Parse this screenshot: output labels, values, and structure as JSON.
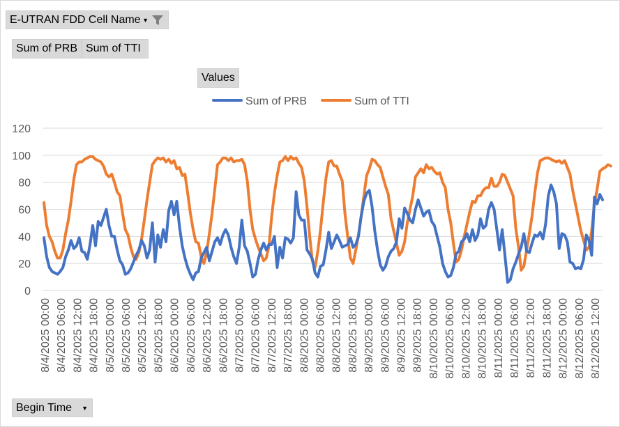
{
  "filter": {
    "label": "E-UTRAN FDD Cell Name"
  },
  "value_fields": [
    "Sum of PRB",
    "Sum of TTI"
  ],
  "values_label": "Values",
  "axis_field": {
    "label": "Begin Time"
  },
  "colors": {
    "prb": "#4472c4",
    "tti": "#ed7d31",
    "grid": "#d9d9d9"
  },
  "chart_data": {
    "type": "line",
    "legend_position": "top",
    "grid": true,
    "ylim": [
      0,
      120
    ],
    "yticks": [
      0,
      20,
      40,
      60,
      80,
      100,
      120
    ],
    "xlabels": [
      "8/4/2025 00:00",
      "8/4/2025 06:00",
      "8/4/2025 12:00",
      "8/4/2025 18:00",
      "8/5/2025 00:00",
      "8/5/2025 06:00",
      "8/5/2025 12:00",
      "8/5/2025 18:00",
      "8/6/2025 00:00",
      "8/6/2025 06:00",
      "8/6/2025 12:00",
      "8/6/2025 18:00",
      "8/7/2025 00:00",
      "8/7/2025 06:00",
      "8/7/2025 12:00",
      "8/7/2025 18:00",
      "8/8/2025 00:00",
      "8/8/2025 06:00",
      "8/8/2025 12:00",
      "8/8/2025 18:00",
      "8/9/2025 00:00",
      "8/9/2025 06:00",
      "8/9/2025 12:00",
      "8/9/2025 18:00",
      "8/10/2025 00:00",
      "8/10/2025 06:00",
      "8/10/2025 12:00",
      "8/10/2025 18:00",
      "8/11/2025 00:00",
      "8/11/2025 06:00",
      "8/11/2025 12:00",
      "8/11/2025 18:00",
      "8/12/2025 00:00",
      "8/12/2025 06:00",
      "8/12/2025 12:00"
    ],
    "series": [
      {
        "name": "Sum of PRB",
        "values": [
          39,
          25,
          17,
          14,
          13,
          12,
          14,
          17,
          25,
          30,
          37,
          31,
          33,
          39,
          29,
          28,
          23,
          34,
          48,
          33,
          51,
          48,
          54,
          60,
          48,
          40,
          40,
          30,
          22,
          19,
          12,
          13,
          16,
          21,
          26,
          30,
          37,
          33,
          24,
          30,
          50,
          21,
          41,
          32,
          45,
          36,
          59,
          66,
          56,
          66,
          47,
          33,
          24,
          17,
          12,
          8,
          13,
          14,
          24,
          28,
          32,
          22,
          29,
          36,
          39,
          34,
          41,
          45,
          41,
          32,
          25,
          20,
          32,
          52,
          33,
          29,
          20,
          10,
          12,
          23,
          30,
          35,
          30,
          34,
          34,
          40,
          17,
          32,
          24,
          39,
          38,
          35,
          39,
          73,
          56,
          52,
          52,
          30,
          27,
          23,
          13,
          10,
          18,
          19,
          30,
          43,
          31,
          36,
          41,
          37,
          32,
          33,
          34,
          39,
          32,
          34,
          40,
          55,
          66,
          72,
          74,
          62,
          44,
          30,
          19,
          15,
          18,
          25,
          29,
          31,
          36,
          53,
          46,
          61,
          57,
          52,
          50,
          60,
          67,
          61,
          55,
          58,
          59,
          51,
          48,
          40,
          32,
          20,
          14,
          10,
          11,
          17,
          27,
          29,
          36,
          38,
          42,
          36,
          45,
          37,
          41,
          53,
          46,
          48,
          60,
          65,
          60,
          45,
          30,
          45,
          26,
          6,
          8,
          16,
          21,
          27,
          32,
          42,
          29,
          28,
          35,
          41,
          40,
          43,
          38,
          49,
          70,
          78,
          73,
          64,
          31,
          42,
          41,
          36,
          21,
          20,
          16,
          17,
          16,
          23,
          41,
          37,
          26,
          69,
          64,
          71,
          67
        ]
      },
      {
        "name": "Sum of TTI",
        "values": [
          65,
          48,
          40,
          36,
          29,
          24,
          24,
          30,
          42,
          52,
          66,
          82,
          93,
          95,
          95,
          97,
          98,
          99,
          99,
          97,
          96,
          95,
          92,
          86,
          84,
          86,
          80,
          73,
          70,
          57,
          45,
          41,
          32,
          25,
          23,
          28,
          38,
          52,
          67,
          80,
          93,
          96,
          98,
          97,
          98,
          95,
          97,
          94,
          96,
          90,
          91,
          85,
          86,
          72,
          57,
          45,
          36,
          35,
          25,
          20,
          28,
          42,
          57,
          75,
          93,
          95,
          98,
          98,
          96,
          98,
          95,
          96,
          96,
          97,
          93,
          81,
          60,
          45,
          38,
          32,
          27,
          22,
          24,
          33,
          55,
          72,
          85,
          95,
          96,
          99,
          96,
          99,
          97,
          98,
          94,
          91,
          81,
          62,
          40,
          22,
          17,
          29,
          45,
          65,
          83,
          95,
          96,
          92,
          92,
          86,
          81,
          57,
          40,
          24,
          20,
          30,
          41,
          55,
          70,
          85,
          90,
          97,
          96,
          93,
          91,
          84,
          77,
          71,
          53,
          44,
          35,
          26,
          29,
          36,
          50,
          60,
          70,
          84,
          87,
          90,
          87,
          93,
          90,
          91,
          88,
          86,
          87,
          80,
          76,
          60,
          50,
          35,
          21,
          23,
          30,
          40,
          49,
          58,
          66,
          65,
          70,
          70,
          74,
          76,
          76,
          83,
          77,
          77,
          80,
          86,
          85,
          80,
          75,
          70,
          46,
          32,
          15,
          18,
          30,
          42,
          55,
          72,
          87,
          96,
          97,
          98,
          98,
          97,
          96,
          95,
          96,
          94,
          96,
          91,
          86,
          74,
          64,
          54,
          44,
          37,
          30,
          32,
          44,
          64,
          75,
          88,
          90,
          91,
          93,
          92
        ]
      }
    ]
  }
}
